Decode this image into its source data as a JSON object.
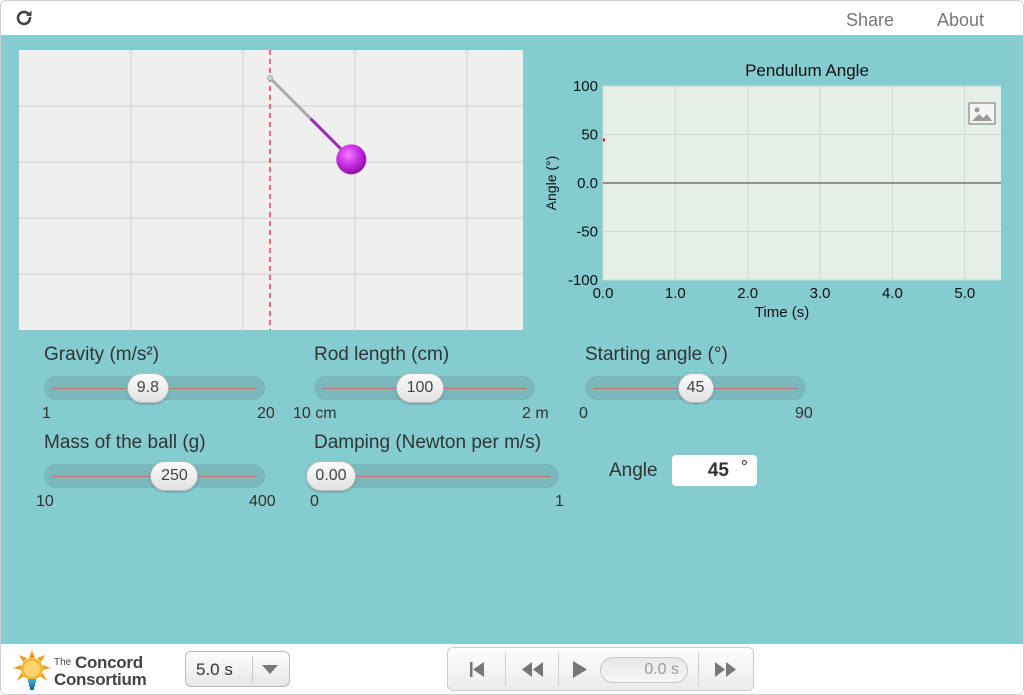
{
  "top_bar": {
    "share_label": "Share",
    "about_label": "About",
    "reload_icon": "reload-icon"
  },
  "pendulum": {
    "rod_length_cm": 100,
    "starting_angle_deg": 45,
    "bob_color": "#c22ee0",
    "pivot_line_color": "#e0282e"
  },
  "chart_data": {
    "type": "line",
    "title": "Pendulum Angle",
    "xlabel": "Time (s)",
    "ylabel": "Angle (°)",
    "xlim": [
      0.0,
      5.5
    ],
    "ylim": [
      -100,
      100
    ],
    "x_ticks": [
      "0.0",
      "1.0",
      "2.0",
      "3.0",
      "4.0",
      "5.0"
    ],
    "y_ticks": [
      "100",
      "50",
      "0.0",
      "-50",
      "-100"
    ],
    "x_tick_values": [
      0,
      1,
      2,
      3,
      4,
      5
    ],
    "y_tick_values": [
      100,
      50,
      0,
      -50,
      -100
    ],
    "series": [
      {
        "x": [
          0.0
        ],
        "y": [
          45
        ],
        "color": "#cc2222"
      }
    ],
    "grid": true,
    "image_icon": "image-icon"
  },
  "sliders": {
    "gravity": {
      "label": "Gravity (m/s²)",
      "value": "9.8",
      "min_label": "1",
      "max_label": "20",
      "min": 1,
      "max": 20,
      "v": 9.8
    },
    "rod_length": {
      "label": "Rod length (cm)",
      "value": "100",
      "min_label": "10 cm",
      "max_label": "2 m",
      "min": 10,
      "max": 200,
      "v": 100
    },
    "starting_angle": {
      "label": "Starting angle (°)",
      "value": "45",
      "min_label": "0",
      "max_label": "90",
      "min": 0,
      "max": 90,
      "v": 45
    },
    "mass": {
      "label": "Mass of the ball (g)",
      "value": "250",
      "min_label": "10",
      "max_label": "400",
      "min": 10,
      "max": 400,
      "v": 250
    },
    "damping": {
      "label": "Damping (Newton per m/s)",
      "value": "0.00",
      "min_label": "0",
      "max_label": "1",
      "min": 0,
      "max": 1,
      "v": 0
    }
  },
  "angle_readout": {
    "label": "Angle",
    "value": "45",
    "unit": "°"
  },
  "bottom_bar": {
    "logo_the": "The",
    "logo_concord": "Concord",
    "logo_consortium": "Consortium",
    "duration_value": "5.0 s",
    "time_display": "0.0 s"
  }
}
